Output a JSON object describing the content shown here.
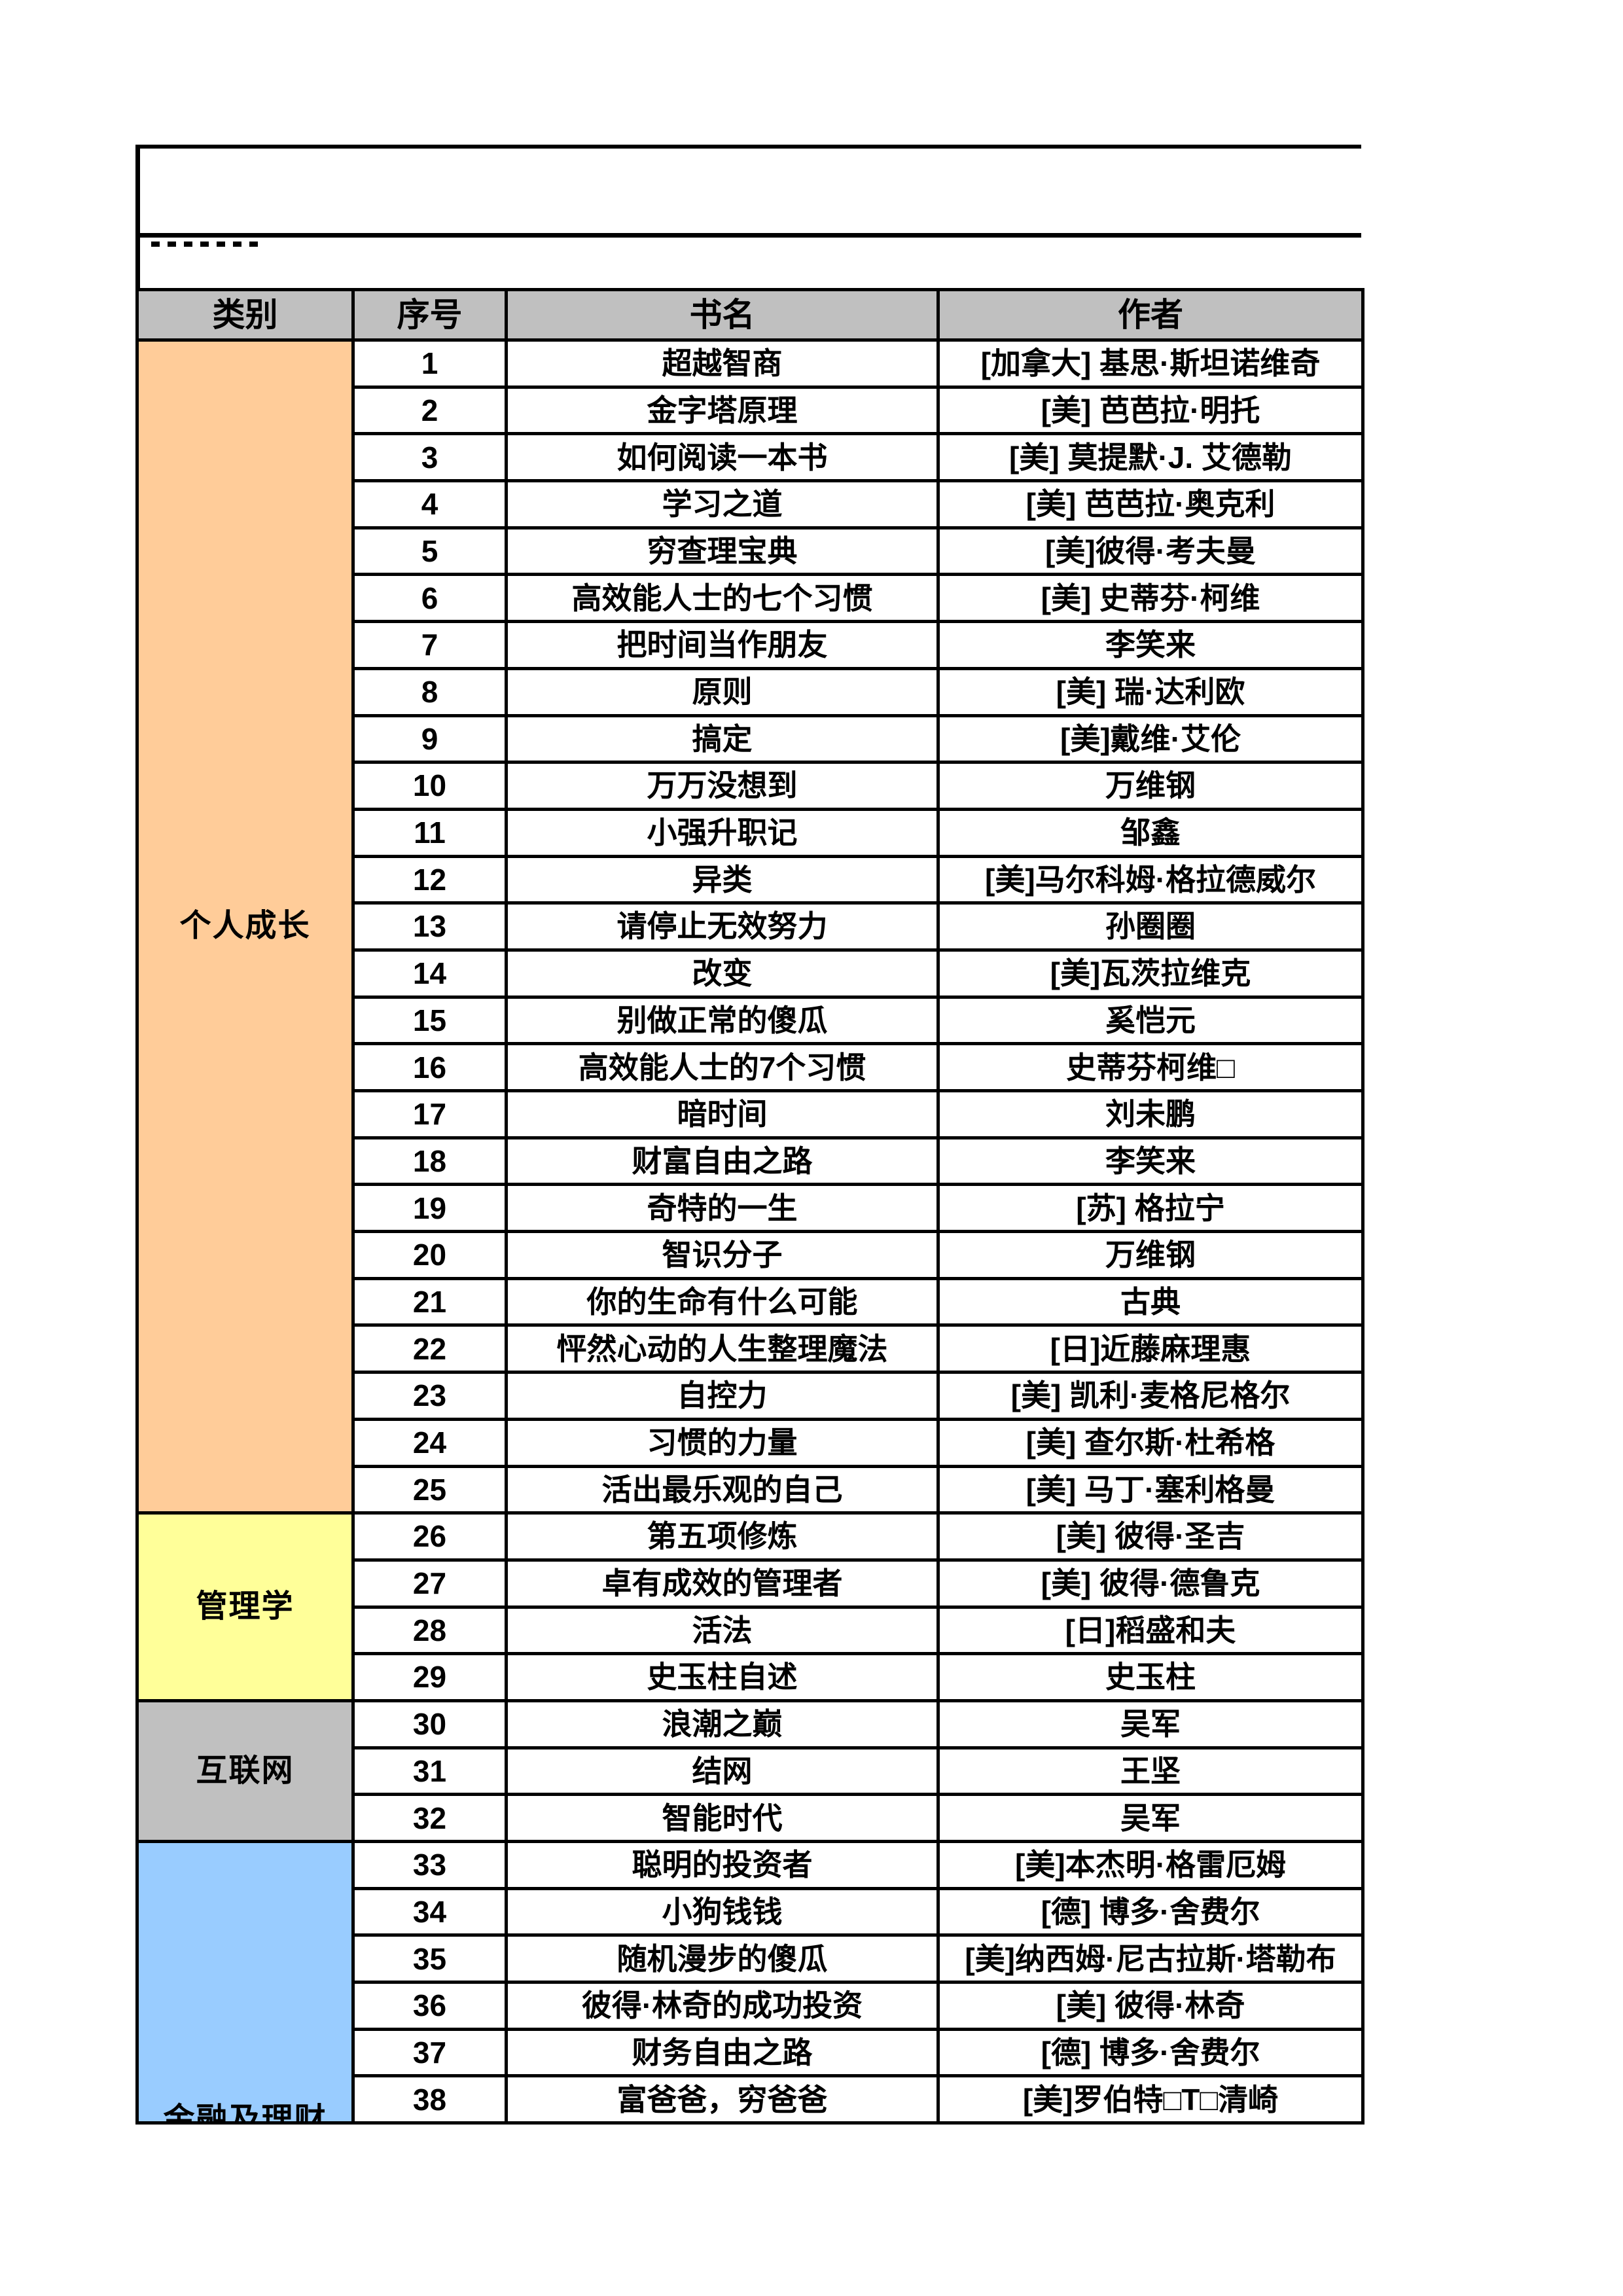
{
  "colors": {
    "border": "#000000",
    "page_bg": "#FFFFFF",
    "header_bg": "#C0C0C0",
    "category_personal_growth": "#FFCC99",
    "category_management": "#FFFF99",
    "category_internet": "#C0C0C0",
    "category_finance": "#99CCFF"
  },
  "table": {
    "headers": [
      "类别",
      "序号",
      "书名",
      "作者"
    ],
    "categories": [
      {
        "label": "个人成长",
        "color": "#FFCC99",
        "rows": [
          1,
          25
        ],
        "clipped": false
      },
      {
        "label": "管理学",
        "color": "#FFFF99",
        "rows": [
          26,
          29
        ],
        "clipped": false
      },
      {
        "label": "互联网",
        "color": "#C0C0C0",
        "rows": [
          30,
          32
        ],
        "clipped": false
      },
      {
        "label": "金融及理财",
        "color": "#99CCFF",
        "rows": [
          33,
          38
        ],
        "clipped": true
      }
    ],
    "books": [
      {
        "no": "1",
        "title": "超越智商",
        "author": "[加拿大] 基思·斯坦诺维奇"
      },
      {
        "no": "2",
        "title": "金字塔原理",
        "author": "[美] 芭芭拉·明托"
      },
      {
        "no": "3",
        "title": "如何阅读一本书",
        "author": "[美] 莫提默·J. 艾德勒"
      },
      {
        "no": "4",
        "title": "学习之道",
        "author": "[美] 芭芭拉·奥克利"
      },
      {
        "no": "5",
        "title": "穷查理宝典",
        "author": "[美]彼得·考夫曼"
      },
      {
        "no": "6",
        "title": "高效能人士的七个习惯",
        "author": "[美] 史蒂芬·柯维"
      },
      {
        "no": "7",
        "title": "把时间当作朋友",
        "author": "李笑来"
      },
      {
        "no": "8",
        "title": "原则",
        "author": "[美] 瑞·达利欧"
      },
      {
        "no": "9",
        "title": "搞定",
        "author": "[美]戴维·艾伦"
      },
      {
        "no": "10",
        "title": "万万没想到",
        "author": "万维钢"
      },
      {
        "no": "11",
        "title": "小强升职记",
        "author": "邹鑫"
      },
      {
        "no": "12",
        "title": "异类",
        "author": "[美]马尔科姆·格拉德威尔"
      },
      {
        "no": "13",
        "title": "请停止无效努力",
        "author": "孙圈圈"
      },
      {
        "no": "14",
        "title": "改变",
        "author": "[美]瓦茨拉维克"
      },
      {
        "no": "15",
        "title": "别做正常的傻瓜",
        "author": "奚恺元"
      },
      {
        "no": "16",
        "title": "高效能人士的7个习惯",
        "author": "史蒂芬柯维□"
      },
      {
        "no": "17",
        "title": "暗时间",
        "author": "刘未鹏"
      },
      {
        "no": "18",
        "title": "财富自由之路",
        "author": "李笑来"
      },
      {
        "no": "19",
        "title": "奇特的一生",
        "author": "[苏] 格拉宁"
      },
      {
        "no": "20",
        "title": "智识分子",
        "author": "万维钢"
      },
      {
        "no": "21",
        "title": "你的生命有什么可能",
        "author": "古典"
      },
      {
        "no": "22",
        "title": "怦然心动的人生整理魔法",
        "author": "[日]近藤麻理惠"
      },
      {
        "no": "23",
        "title": "自控力",
        "author": "[美] 凯利·麦格尼格尔"
      },
      {
        "no": "24",
        "title": "习惯的力量",
        "author": "[美] 查尔斯·杜希格"
      },
      {
        "no": "25",
        "title": "活出最乐观的自己",
        "author": "[美] 马丁·塞利格曼"
      },
      {
        "no": "26",
        "title": "第五项修炼",
        "author": "[美] 彼得·圣吉"
      },
      {
        "no": "27",
        "title": "卓有成效的管理者",
        "author": "[美] 彼得·德鲁克"
      },
      {
        "no": "28",
        "title": "活法",
        "author": "[日]稻盛和夫"
      },
      {
        "no": "29",
        "title": "史玉柱自述",
        "author": "史玉柱"
      },
      {
        "no": "30",
        "title": "浪潮之巅",
        "author": "吴军"
      },
      {
        "no": "31",
        "title": "结网",
        "author": "王坚"
      },
      {
        "no": "32",
        "title": "智能时代",
        "author": "吴军"
      },
      {
        "no": "33",
        "title": "聪明的投资者",
        "author": "[美]本杰明·格雷厄姆"
      },
      {
        "no": "34",
        "title": "小狗钱钱",
        "author": "[德] 博多·舍费尔"
      },
      {
        "no": "35",
        "title": "随机漫步的傻瓜",
        "author": "[美]纳西姆·尼古拉斯·塔勒布"
      },
      {
        "no": "36",
        "title": "彼得·林奇的成功投资",
        "author": "[美] 彼得·林奇"
      },
      {
        "no": "37",
        "title": "财务自由之路",
        "author": "[德] 博多·舍费尔"
      },
      {
        "no": "38",
        "title": "富爸爸，穷爸爸",
        "author": "[美]罗伯特□T□清崎"
      }
    ]
  }
}
